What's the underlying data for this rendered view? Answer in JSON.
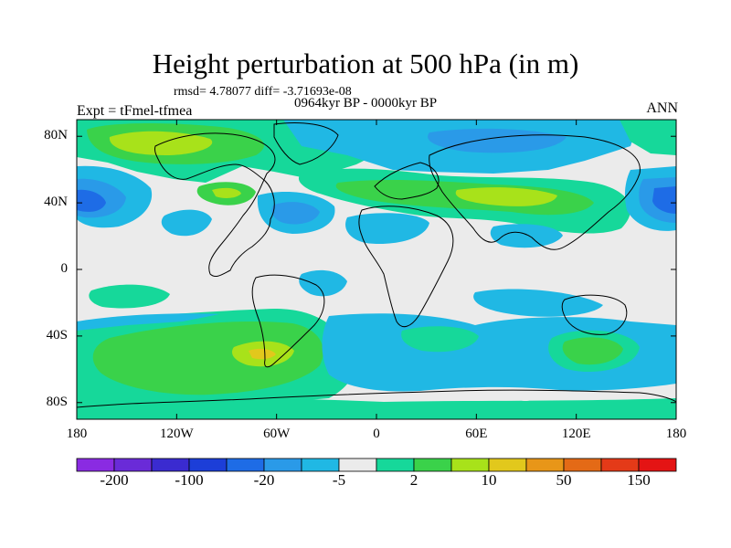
{
  "header": {
    "title": "Height perturbation at 500 hPa (in m)",
    "stats": "rmsd= 4.78077 diff= -3.71693e-08",
    "period": "0964kyr BP - 0000kyr BP",
    "experiment": "Expt = tFmel-tfmea",
    "season": "ANN"
  },
  "map": {
    "projection": "cylindrical equidistant",
    "lon_range": [
      -180,
      180
    ],
    "lat_range": [
      -90,
      90
    ],
    "y_ticks": [
      {
        "label": "80N",
        "lat": 80
      },
      {
        "label": "40N",
        "lat": 40
      },
      {
        "label": "0",
        "lat": 0
      },
      {
        "label": "40S",
        "lat": -40
      },
      {
        "label": "80S",
        "lat": -80
      }
    ],
    "x_ticks": [
      {
        "label": "180",
        "lon": -180
      },
      {
        "label": "120W",
        "lon": -120
      },
      {
        "label": "60W",
        "lon": -60
      },
      {
        "label": "0",
        "lon": 0
      },
      {
        "label": "60E",
        "lon": 60
      },
      {
        "label": "120E",
        "lon": 120
      },
      {
        "label": "180",
        "lon": 180
      }
    ]
  },
  "colorbar": {
    "colors": [
      "#8a2be2",
      "#6a2bd8",
      "#3a2bd0",
      "#1c3ed8",
      "#1e6ce6",
      "#2a9ae8",
      "#20b8e4",
      "#ebebeb",
      "#16d89a",
      "#3ad24a",
      "#a8e21a",
      "#e2c81c",
      "#e89618",
      "#e46a16",
      "#e43a18",
      "#e41414"
    ],
    "labels": [
      "-200",
      "-100",
      "-20",
      "-5",
      "2",
      "10",
      "50",
      "150"
    ]
  },
  "palette": {
    "neutral": "#ebebeb",
    "light_blue": "#20b8e4",
    "mid_blue": "#2a9ae8",
    "dark_blue": "#1e6ce6",
    "teal_green": "#16d89a",
    "green": "#3ad24a",
    "lime": "#a8e21a",
    "yellow": "#e2c81c"
  }
}
